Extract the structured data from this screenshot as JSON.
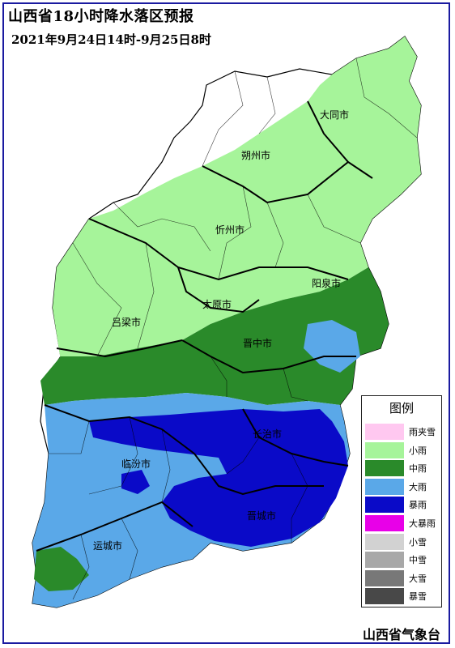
{
  "title": "山西省18小时降水落区预报",
  "subtitle": "2021年9月24日14时-9月25日8时",
  "footer": "山西省气象台",
  "cities": [
    "大同市",
    "朔州市",
    "忻州市",
    "阳泉市",
    "太原市",
    "吕梁市",
    "晋中市",
    "长治市",
    "临汾市",
    "晋城市",
    "运城市"
  ],
  "legend": {
    "title": "图例",
    "items": [
      {
        "label": "雨夹雪",
        "color": "#ffc8f0"
      },
      {
        "label": "小雨",
        "color": "#a6f49a"
      },
      {
        "label": "中雨",
        "color": "#2a8a2a"
      },
      {
        "label": "大雨",
        "color": "#5aa8e8"
      },
      {
        "label": "暴雨",
        "color": "#0a0ac8"
      },
      {
        "label": "大暴雨",
        "color": "#e800e8"
      },
      {
        "label": "小雪",
        "color": "#d2d2d2"
      },
      {
        "label": "中雪",
        "color": "#a8a8a8"
      },
      {
        "label": "大雪",
        "color": "#787878"
      },
      {
        "label": "暴雪",
        "color": "#484848"
      }
    ]
  }
}
